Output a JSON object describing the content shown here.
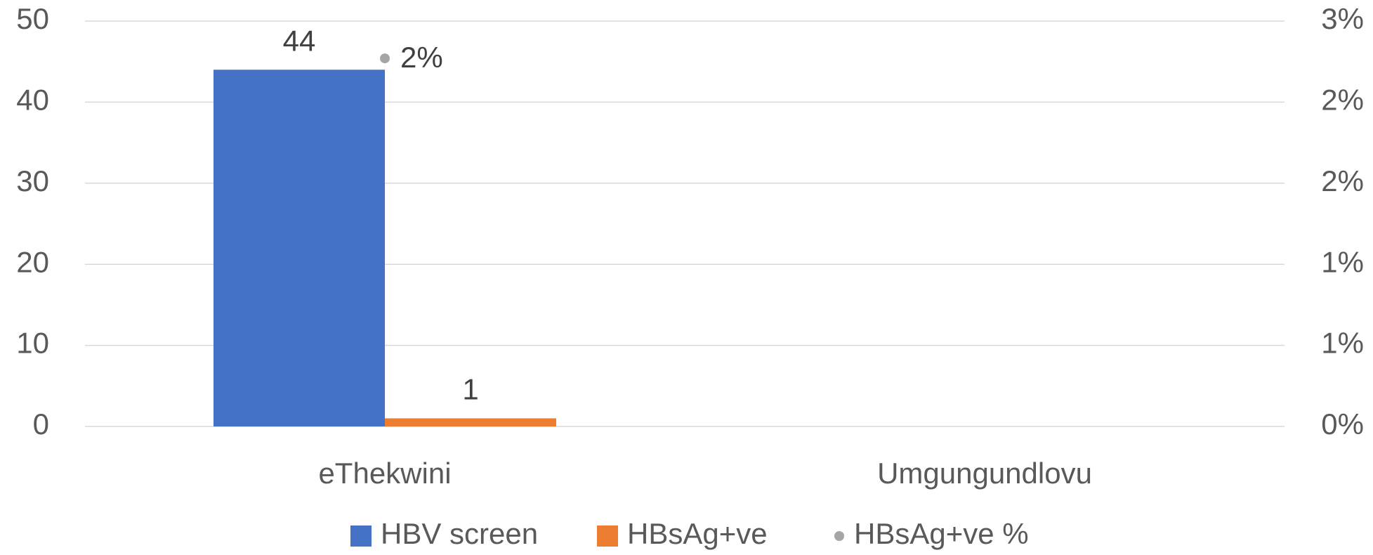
{
  "chart_data": {
    "type": "bar",
    "categories": [
      "eThekwini",
      "Umgungundlovu"
    ],
    "series": [
      {
        "name": "HBV screen",
        "color": "#4472c4",
        "values": [
          44,
          null
        ]
      },
      {
        "name": "HBsAg+ve",
        "color": "#ed7d31",
        "values": [
          1,
          null
        ]
      },
      {
        "name": "HBsAg+ve %",
        "color": "#a5a5a5",
        "type": "scatter",
        "axis": "y2",
        "values": [
          2.27,
          null
        ],
        "value_labels": [
          "2%",
          null
        ]
      }
    ],
    "ylim": [
      0,
      50
    ],
    "yticks": [
      0,
      10,
      20,
      30,
      40,
      50
    ],
    "y2lim": [
      0,
      2.5
    ],
    "y2ticks": [
      {
        "value": 0,
        "label": "0%"
      },
      {
        "value": 0.5,
        "label": "1%"
      },
      {
        "value": 1,
        "label": "1%"
      },
      {
        "value": 1.5,
        "label": "2%"
      },
      {
        "value": 2,
        "label": "2%"
      },
      {
        "value": 2.5,
        "label": "3%"
      }
    ],
    "grid": true,
    "legend": "bottom"
  }
}
